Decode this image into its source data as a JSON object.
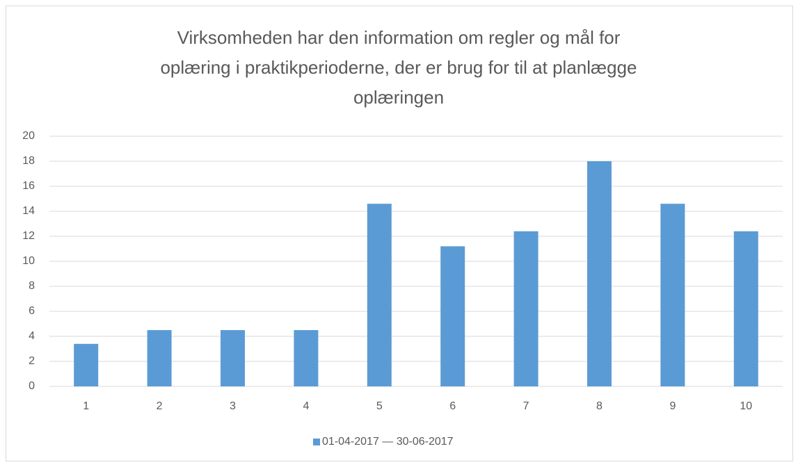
{
  "chart_data": {
    "type": "bar",
    "title": "Virksomheden har den information om regler og mål for oplæring i praktikperioderne, der er brug for til at planlægge oplæringen",
    "categories": [
      "1",
      "2",
      "3",
      "4",
      "5",
      "6",
      "7",
      "8",
      "9",
      "10"
    ],
    "series": [
      {
        "name": "01-04-2017 — 30-06-2017",
        "color": "#5b9bd5",
        "values": [
          3.4,
          4.5,
          4.5,
          4.5,
          14.6,
          11.2,
          12.4,
          18,
          14.6,
          12.4
        ]
      }
    ],
    "ylim": [
      0,
      20
    ],
    "yticks": [
      0,
      2,
      4,
      6,
      8,
      10,
      12,
      14,
      16,
      18,
      20
    ],
    "grid": true,
    "legend": "bottom"
  }
}
